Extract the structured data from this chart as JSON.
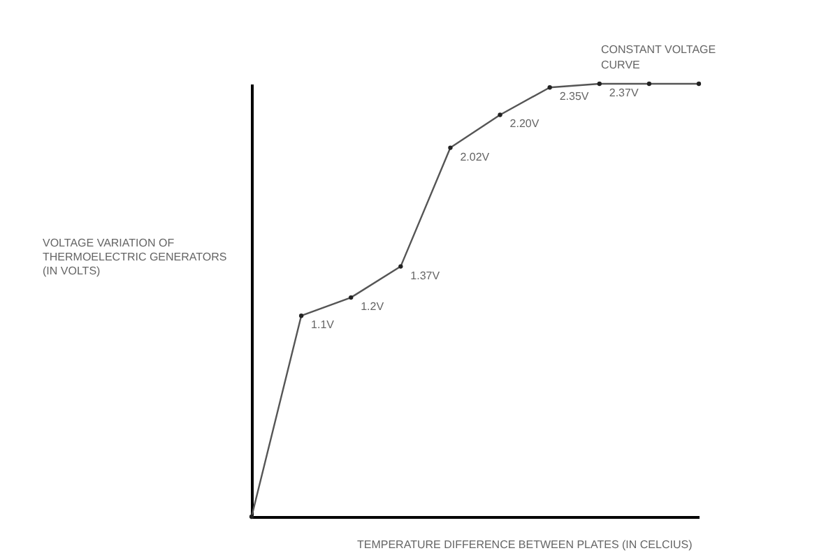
{
  "chart_data": {
    "type": "line",
    "xlabel": "TEMPERATURE DIFFERENCE BETWEEN PLATES (IN CELCIUS)",
    "ylabel": "VOLTAGE VARIATION OF THERMOELECTRIC GENERATORS (IN VOLTS)",
    "annotations": [
      "CONSTANT VOLTAGE CURVE"
    ],
    "categories": [
      null,
      null,
      null,
      null,
      null,
      null,
      null,
      null,
      null,
      null
    ],
    "series": [
      {
        "color": "#555555",
        "values": [
          0,
          1.1,
          1.2,
          1.37,
          2.02,
          2.2,
          2.35,
          2.37,
          2.37,
          2.37
        ],
        "value_labels": [
          null,
          "1.1V",
          "1.2V",
          "1.37V",
          "2.02V",
          "2.20V",
          "2.35V",
          "2.37V",
          null,
          null
        ]
      }
    ],
    "marker": "circle",
    "line_style": "solid"
  }
}
